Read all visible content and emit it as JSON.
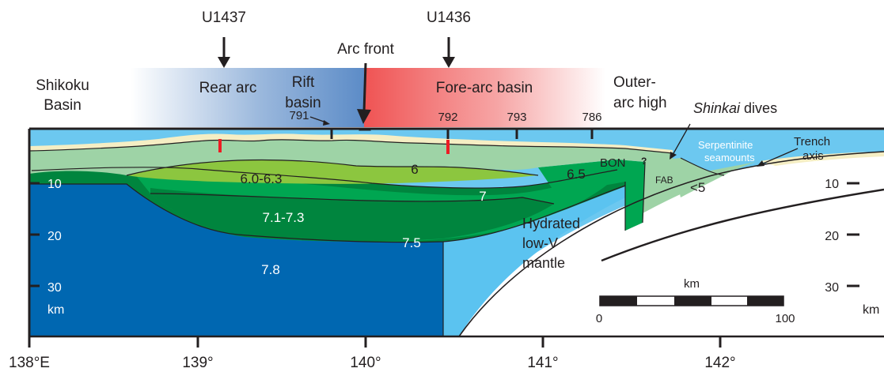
{
  "drill_sites": {
    "site_a": "U1437",
    "site_b": "U1436"
  },
  "top_labels": {
    "shikoku_line1": "Shikoku",
    "shikoku_line2": "Basin",
    "rear_arc": "Rear arc",
    "rift_line1": "Rift",
    "rift_line2": "basin",
    "arc_front": "Arc front",
    "fore_arc_basin": "Fore-arc basin",
    "outer_line1": "Outer-",
    "outer_line2": "arc high",
    "shinkai_italic": "Shinkai",
    "shinkai_rest": " dives"
  },
  "sites": {
    "s791": "791",
    "s792": "792",
    "s793": "793",
    "s786": "786"
  },
  "section_labels": {
    "serp_line1": "Serpentinite",
    "serp_line2": "seamounts",
    "trench_line1": "Trench",
    "trench_line2": "axis",
    "bon": "BON",
    "question": "?",
    "fab": "FAB",
    "lt5": "<5",
    "v6063": "6.0-6.3",
    "v6": "6",
    "v65": "6.5",
    "v7": "7",
    "v7173": "7.1-7.3",
    "v75": "7.5",
    "v78": "7.8",
    "hydr_line1": "Hydrated",
    "hydr_line2": "low-V",
    "hydr_line3": "mantle"
  },
  "depth_axis": {
    "left": [
      "10",
      "20",
      "30"
    ],
    "right": [
      "10",
      "20",
      "30"
    ],
    "unit": "km"
  },
  "scale_bar": {
    "title": "km",
    "min": "0",
    "max": "100"
  },
  "longitude_axis": [
    "138°E",
    "139°",
    "140°",
    "141°",
    "142°"
  ],
  "colors": {
    "seawater": "#6cc8f0",
    "upper_crust": "#9ed3a6",
    "middle_crust_light": "#8cc63f",
    "middle_crust": "#00a651",
    "lower_crust": "#00853e",
    "mantle": "#0067b1",
    "hydrated_mantle": "#5bc3f0",
    "sediment": "#f5eec4",
    "site_marker": "#ed1c24",
    "rear_arc_gradient": "#4a7fc1",
    "fore_arc_gradient": "#ef5a5a"
  }
}
